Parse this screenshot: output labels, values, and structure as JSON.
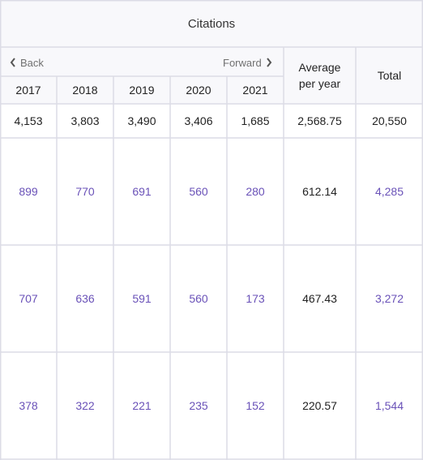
{
  "title": "Citations",
  "nav": {
    "back": "Back",
    "forward": "Forward"
  },
  "columns": {
    "years": [
      "2017",
      "2018",
      "2019",
      "2020",
      "2021"
    ],
    "average_line1": "Average",
    "average_line2": "per year",
    "total": "Total"
  },
  "totals_row": {
    "years": [
      "4,153",
      "3,803",
      "3,490",
      "3,406",
      "1,685"
    ],
    "average": "2,568.75",
    "total": "20,550"
  },
  "rows": [
    {
      "years": [
        "899",
        "770",
        "691",
        "560",
        "280"
      ],
      "average": "612.14",
      "total": "4,285"
    },
    {
      "years": [
        "707",
        "636",
        "591",
        "560",
        "173"
      ],
      "average": "467.43",
      "total": "3,272"
    },
    {
      "years": [
        "378",
        "322",
        "221",
        "235",
        "152"
      ],
      "average": "220.57",
      "total": "1,544"
    }
  ],
  "colors": {
    "link": "#6a52b8",
    "grid": "#dcdce6",
    "header_bg": "#f8f8fb"
  },
  "icons": {
    "back": "chevron-left-icon",
    "forward": "chevron-right-icon"
  }
}
